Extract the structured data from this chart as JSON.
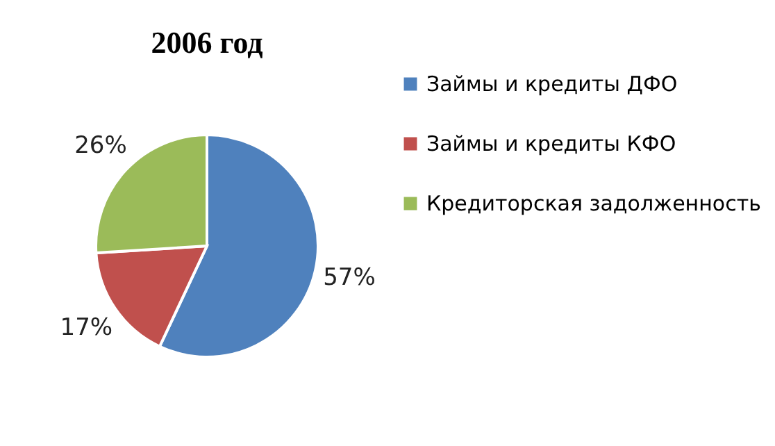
{
  "chart_data": {
    "type": "pie",
    "title": "2006 год",
    "categories": [
      "Займы и кредиты ДФО",
      "Займы и кредиты КФО",
      "Кредиторская задолженность"
    ],
    "values": [
      57,
      17,
      26
    ],
    "colors": [
      "#4f81bd",
      "#c0504d",
      "#9bbb59"
    ],
    "value_labels": [
      "57%",
      "17%",
      "26%"
    ],
    "legend": "right"
  }
}
